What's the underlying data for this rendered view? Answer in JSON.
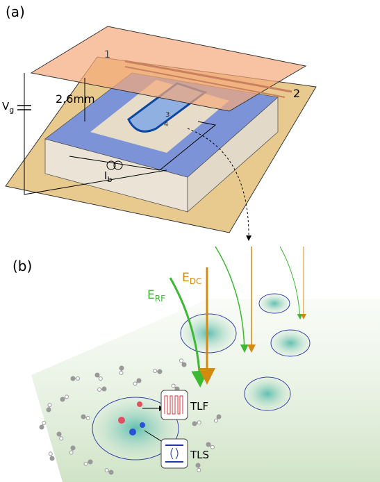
{
  "panel_a": {
    "label": "(a)",
    "electrode_1": "1",
    "electrode_2": "2",
    "gate_voltage": {
      "symbol": "V",
      "subscript": "g"
    },
    "thickness": "2.6mm",
    "bias_current": {
      "symbol": "I",
      "subscript": "b"
    },
    "contact_3": "3",
    "contact_4": "4"
  },
  "panel_b": {
    "label": "(b)",
    "dc_field": {
      "symbol": "E",
      "subscript": "DC"
    },
    "rf_field": {
      "symbol": "E",
      "subscript": "RF"
    },
    "tlf": "TLF",
    "tls": "TLS"
  }
}
